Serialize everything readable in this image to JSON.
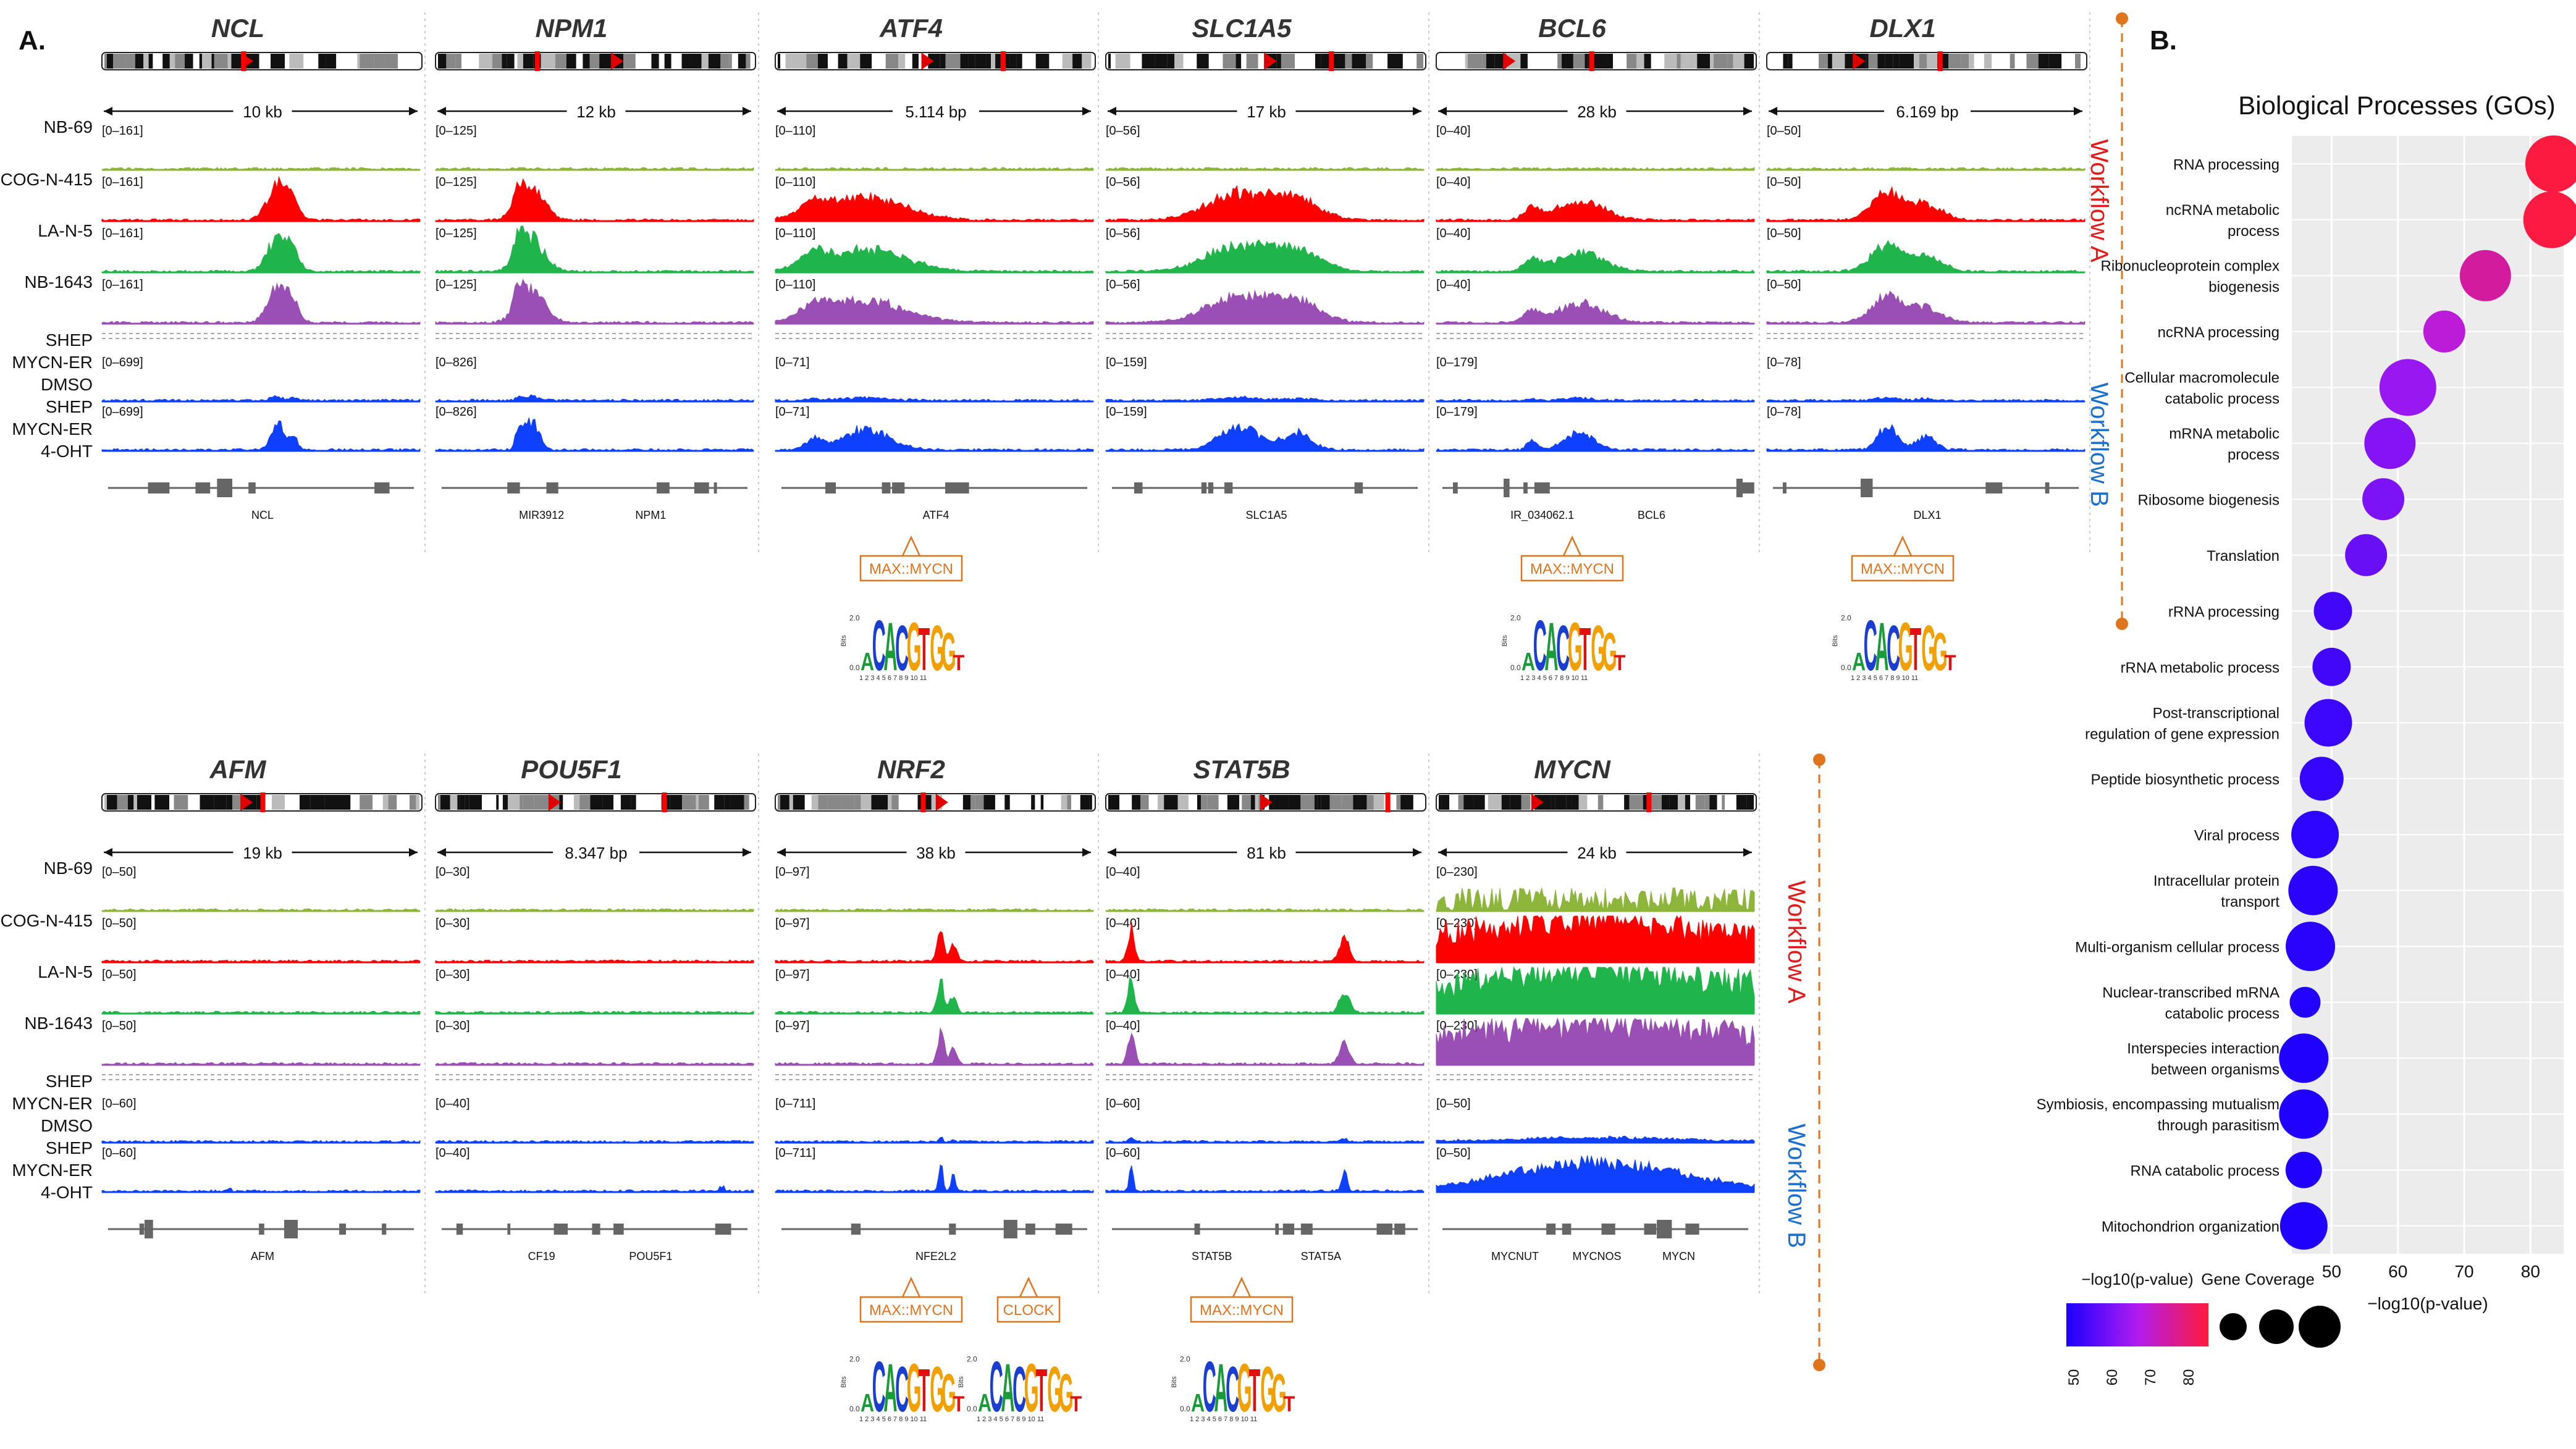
{
  "panelA": {
    "label": "A.",
    "workflow_a_label": "Workflow A",
    "workflow_b_label": "Workflow B",
    "rows": [
      {
        "sample_labels": [
          "NB-69",
          "COG-N-415",
          "LA-N-5",
          "NB-1643",
          "SHEP",
          "MYCN-ER",
          "DMSO",
          "SHEP",
          "MYCN-ER",
          "4-OHT"
        ],
        "genes": [
          {
            "name": "NCL",
            "scale": "10 kb",
            "range_a": "[0–161]",
            "range_b": "[0–699]",
            "annotations": [
              "NCL"
            ],
            "motif": ""
          },
          {
            "name": "NPM1",
            "scale": "12 kb",
            "range_a": "[0–125]",
            "range_b": "[0–826]",
            "annotations": [
              "MIR3912",
              "NPM1"
            ],
            "motif": ""
          },
          {
            "name": "ATF4",
            "scale": "5.114 bp",
            "range_a": "[0–110]",
            "range_b": "[0–71]",
            "annotations": [
              "ATF4"
            ],
            "motif": "MAX::MYCN"
          },
          {
            "name": "SLC1A5",
            "scale": "17 kb",
            "range_a": "[0–56]",
            "range_b": "[0–159]",
            "annotations": [
              "SLC1A5"
            ],
            "motif": ""
          },
          {
            "name": "BCL6",
            "scale": "28 kb",
            "range_a": "[0–40]",
            "range_b": "[0–179]",
            "annotations": [
              "IR_034062.1",
              "BCL6"
            ],
            "motif": "MAX::MYCN"
          },
          {
            "name": "DLX1",
            "scale": "6.169 bp",
            "range_a": "[0–50]",
            "range_b": "[0–78]",
            "annotations": [
              "DLX1"
            ],
            "motif": "MAX::MYCN"
          }
        ]
      },
      {
        "sample_labels": [
          "NB-69",
          "COG-N-415",
          "LA-N-5",
          "NB-1643",
          "SHEP",
          "MYCN-ER",
          "DMSO",
          "SHEP",
          "MYCN-ER",
          "4-OHT"
        ],
        "genes": [
          {
            "name": "AFM",
            "scale": "19 kb",
            "range_a": "[0–50]",
            "range_b": "[0–60]",
            "annotations": [
              "AFM"
            ],
            "motif": ""
          },
          {
            "name": "POU5F1",
            "scale": "8.347 bp",
            "range_a": "[0–30]",
            "range_b": "[0–40]",
            "annotations": [
              "CF19",
              "POU5F1"
            ],
            "motif": ""
          },
          {
            "name": "NRF2",
            "scale": "38 kb",
            "range_a": "[0–97]",
            "range_b": "[0–711]",
            "annotations": [
              "NFE2L2"
            ],
            "motif": "MAX::MYCN",
            "motif2": "CLOCK"
          },
          {
            "name": "STAT5B",
            "scale": "81 kb",
            "range_a": "[0–40]",
            "range_b": "[0–60]",
            "annotations": [
              "STAT5B",
              "STAT5A"
            ],
            "motif": "MAX::MYCN"
          },
          {
            "name": "MYCN",
            "scale": "24 kb",
            "range_a": "[0–230]",
            "range_b": "[0–50]",
            "annotations": [
              "MYCNUT",
              "MYCNOS",
              "MYCN"
            ],
            "motif": ""
          }
        ]
      }
    ],
    "logo_text": {
      "bits": "Bits",
      "y_top": "2.0",
      "y_bottom": "0.0",
      "positions": "1 2 3 4 5 6 7 8 9 10 11"
    }
  },
  "chart_data": {
    "type": "scatter",
    "panel_label": "B.",
    "title": "Biological Processes (GOs)",
    "xlabel": "−log10(p-value)",
    "ylabel": "",
    "xlim": [
      44,
      85
    ],
    "xticks": [
      50,
      60,
      70,
      80
    ],
    "grid": true,
    "categories": [
      "RNA processing",
      "ncRNA metabolic\nprocess",
      "Ribonucleoprotein complex\nbiogenesis",
      "ncRNA processing",
      "Cellular macromolecule\ncatabolic process",
      "mRNA metabolic\nprocess",
      "Ribosome biogenesis",
      "Translation",
      "rRNA processing",
      "rRNA metabolic process",
      "Post-transcriptional\nregulation of gene expression",
      "Peptide biosynthetic process",
      "Viral process",
      "Intracellular protein\ntransport",
      "Multi-organism cellular process",
      "Nuclear-transcribed mRNA\ncatabolic process",
      "Interspecies interaction\nbetween organisms",
      "Symbiosis, encompassing mutualism\nthrough parasitism",
      "RNA catabolic process",
      "Mitochondrion organization"
    ],
    "values": [
      83.5,
      83.2,
      73.2,
      67.0,
      61.5,
      58.8,
      57.8,
      55.2,
      50.2,
      50.0,
      49.5,
      48.5,
      47.5,
      47.2,
      46.8,
      46.0,
      45.8,
      45.8,
      45.8,
      45.8
    ],
    "coverage": [
      1.0,
      1.0,
      0.85,
      0.6,
      1.0,
      0.85,
      0.6,
      0.6,
      0.5,
      0.5,
      0.75,
      0.65,
      0.75,
      0.8,
      0.8,
      0.3,
      0.8,
      0.8,
      0.45,
      0.75
    ],
    "colorbar": {
      "title": "−log10(p-value)",
      "ticks": [
        "50",
        "60",
        "70",
        "80"
      ],
      "low": "#1a00ff",
      "mid": "#b01cf0",
      "high": "#ff1a3c"
    },
    "size_legend_title": "Gene Coverage"
  }
}
